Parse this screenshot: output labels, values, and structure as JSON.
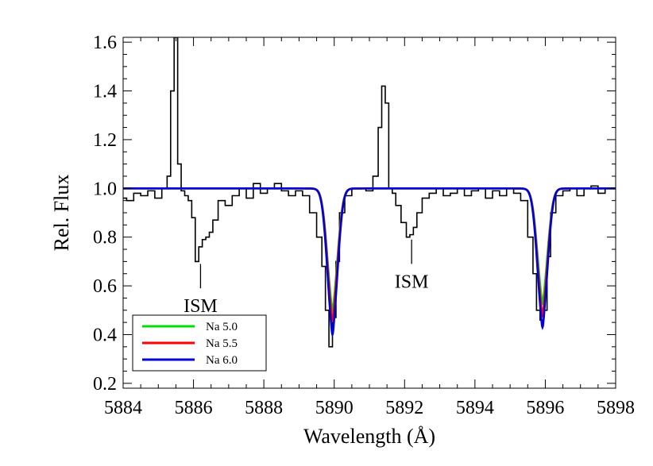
{
  "chart_data": {
    "type": "line",
    "title": "",
    "xlabel": "Wavelength (Å)",
    "ylabel": "Rel. Flux",
    "xlim": [
      5884,
      5898
    ],
    "ylim": [
      0.18,
      1.62
    ],
    "xticks": [
      5884,
      5886,
      5888,
      5890,
      5892,
      5894,
      5896,
      5898
    ],
    "yticks": [
      0.2,
      0.4,
      0.6,
      0.8,
      1.0,
      1.2,
      1.4,
      1.6
    ],
    "ytick_labels": [
      "0.2",
      "0.4",
      "0.6",
      "0.8",
      "1.0",
      "1.2",
      "1.4",
      "1.6"
    ],
    "grid": false,
    "legend_position": "bottom-left",
    "observed": {
      "style": "step",
      "color": "#000000",
      "x": [
        5884.0,
        5884.2,
        5884.4,
        5884.6,
        5884.8,
        5885.0,
        5885.2,
        5885.3,
        5885.4,
        5885.5,
        5885.6,
        5885.7,
        5885.8,
        5885.9,
        5886.0,
        5886.1,
        5886.2,
        5886.3,
        5886.4,
        5886.5,
        5886.6,
        5886.8,
        5887.0,
        5887.2,
        5887.4,
        5887.6,
        5887.8,
        5888.0,
        5888.2,
        5888.4,
        5888.6,
        5888.8,
        5889.0,
        5889.2,
        5889.4,
        5889.6,
        5889.7,
        5889.8,
        5889.9,
        5890.0,
        5890.1,
        5890.2,
        5890.4,
        5890.6,
        5890.8,
        5891.0,
        5891.2,
        5891.3,
        5891.4,
        5891.5,
        5891.6,
        5891.7,
        5891.8,
        5892.0,
        5892.1,
        5892.2,
        5892.3,
        5892.4,
        5892.6,
        5892.8,
        5893.0,
        5893.2,
        5893.4,
        5893.6,
        5893.8,
        5894.0,
        5894.2,
        5894.4,
        5894.6,
        5894.8,
        5895.0,
        5895.2,
        5895.4,
        5895.6,
        5895.7,
        5895.8,
        5895.9,
        5896.0,
        5896.1,
        5896.2,
        5896.4,
        5896.6,
        5896.8,
        5897.0,
        5897.2,
        5897.4,
        5897.6,
        5897.8,
        5898.0
      ],
      "y": [
        0.96,
        0.95,
        0.98,
        0.97,
        0.99,
        0.96,
        1.0,
        1.05,
        1.4,
        1.62,
        1.1,
        0.99,
        0.97,
        0.95,
        0.88,
        0.7,
        0.76,
        0.79,
        0.8,
        0.82,
        0.87,
        0.95,
        0.93,
        0.97,
        1.0,
        0.96,
        1.02,
        0.98,
        1.0,
        1.02,
        0.99,
        0.97,
        0.99,
        0.97,
        0.9,
        0.8,
        0.68,
        0.5,
        0.35,
        0.47,
        0.7,
        0.9,
        0.97,
        1.0,
        1.0,
        0.99,
        1.05,
        1.25,
        1.42,
        1.35,
        1.0,
        0.98,
        0.93,
        0.86,
        0.8,
        0.81,
        0.84,
        0.9,
        0.96,
        0.98,
        1.0,
        0.97,
        0.98,
        1.0,
        0.97,
        0.99,
        1.0,
        0.96,
        0.99,
        0.97,
        1.0,
        0.98,
        0.95,
        0.8,
        0.65,
        0.5,
        0.46,
        0.5,
        0.72,
        0.9,
        0.97,
        0.99,
        1.0,
        0.97,
        1.0,
        1.01,
        0.98,
        1.0,
        1.0
      ]
    },
    "models": {
      "continuum": 1.0,
      "line_centers": [
        5889.95,
        5895.92
      ],
      "sigma": 0.15,
      "gamma": 0.05
    },
    "series": [
      {
        "name": "Na 5.0",
        "color": "#00e000",
        "depths": [
          0.5,
          0.47
        ]
      },
      {
        "name": "Na 5.5",
        "color": "#ff0000",
        "depths": [
          0.54,
          0.52
        ]
      },
      {
        "name": "Na 6.0",
        "color": "#0000dd",
        "depths": [
          0.6,
          0.57
        ]
      }
    ],
    "annotations": [
      {
        "text": "ISM",
        "x": 5886.2,
        "y_line_top": 0.69,
        "y_line_bottom": 0.59
      },
      {
        "text": "ISM",
        "x": 5892.2,
        "y_line_top": 0.79,
        "y_line_bottom": 0.69
      }
    ]
  }
}
